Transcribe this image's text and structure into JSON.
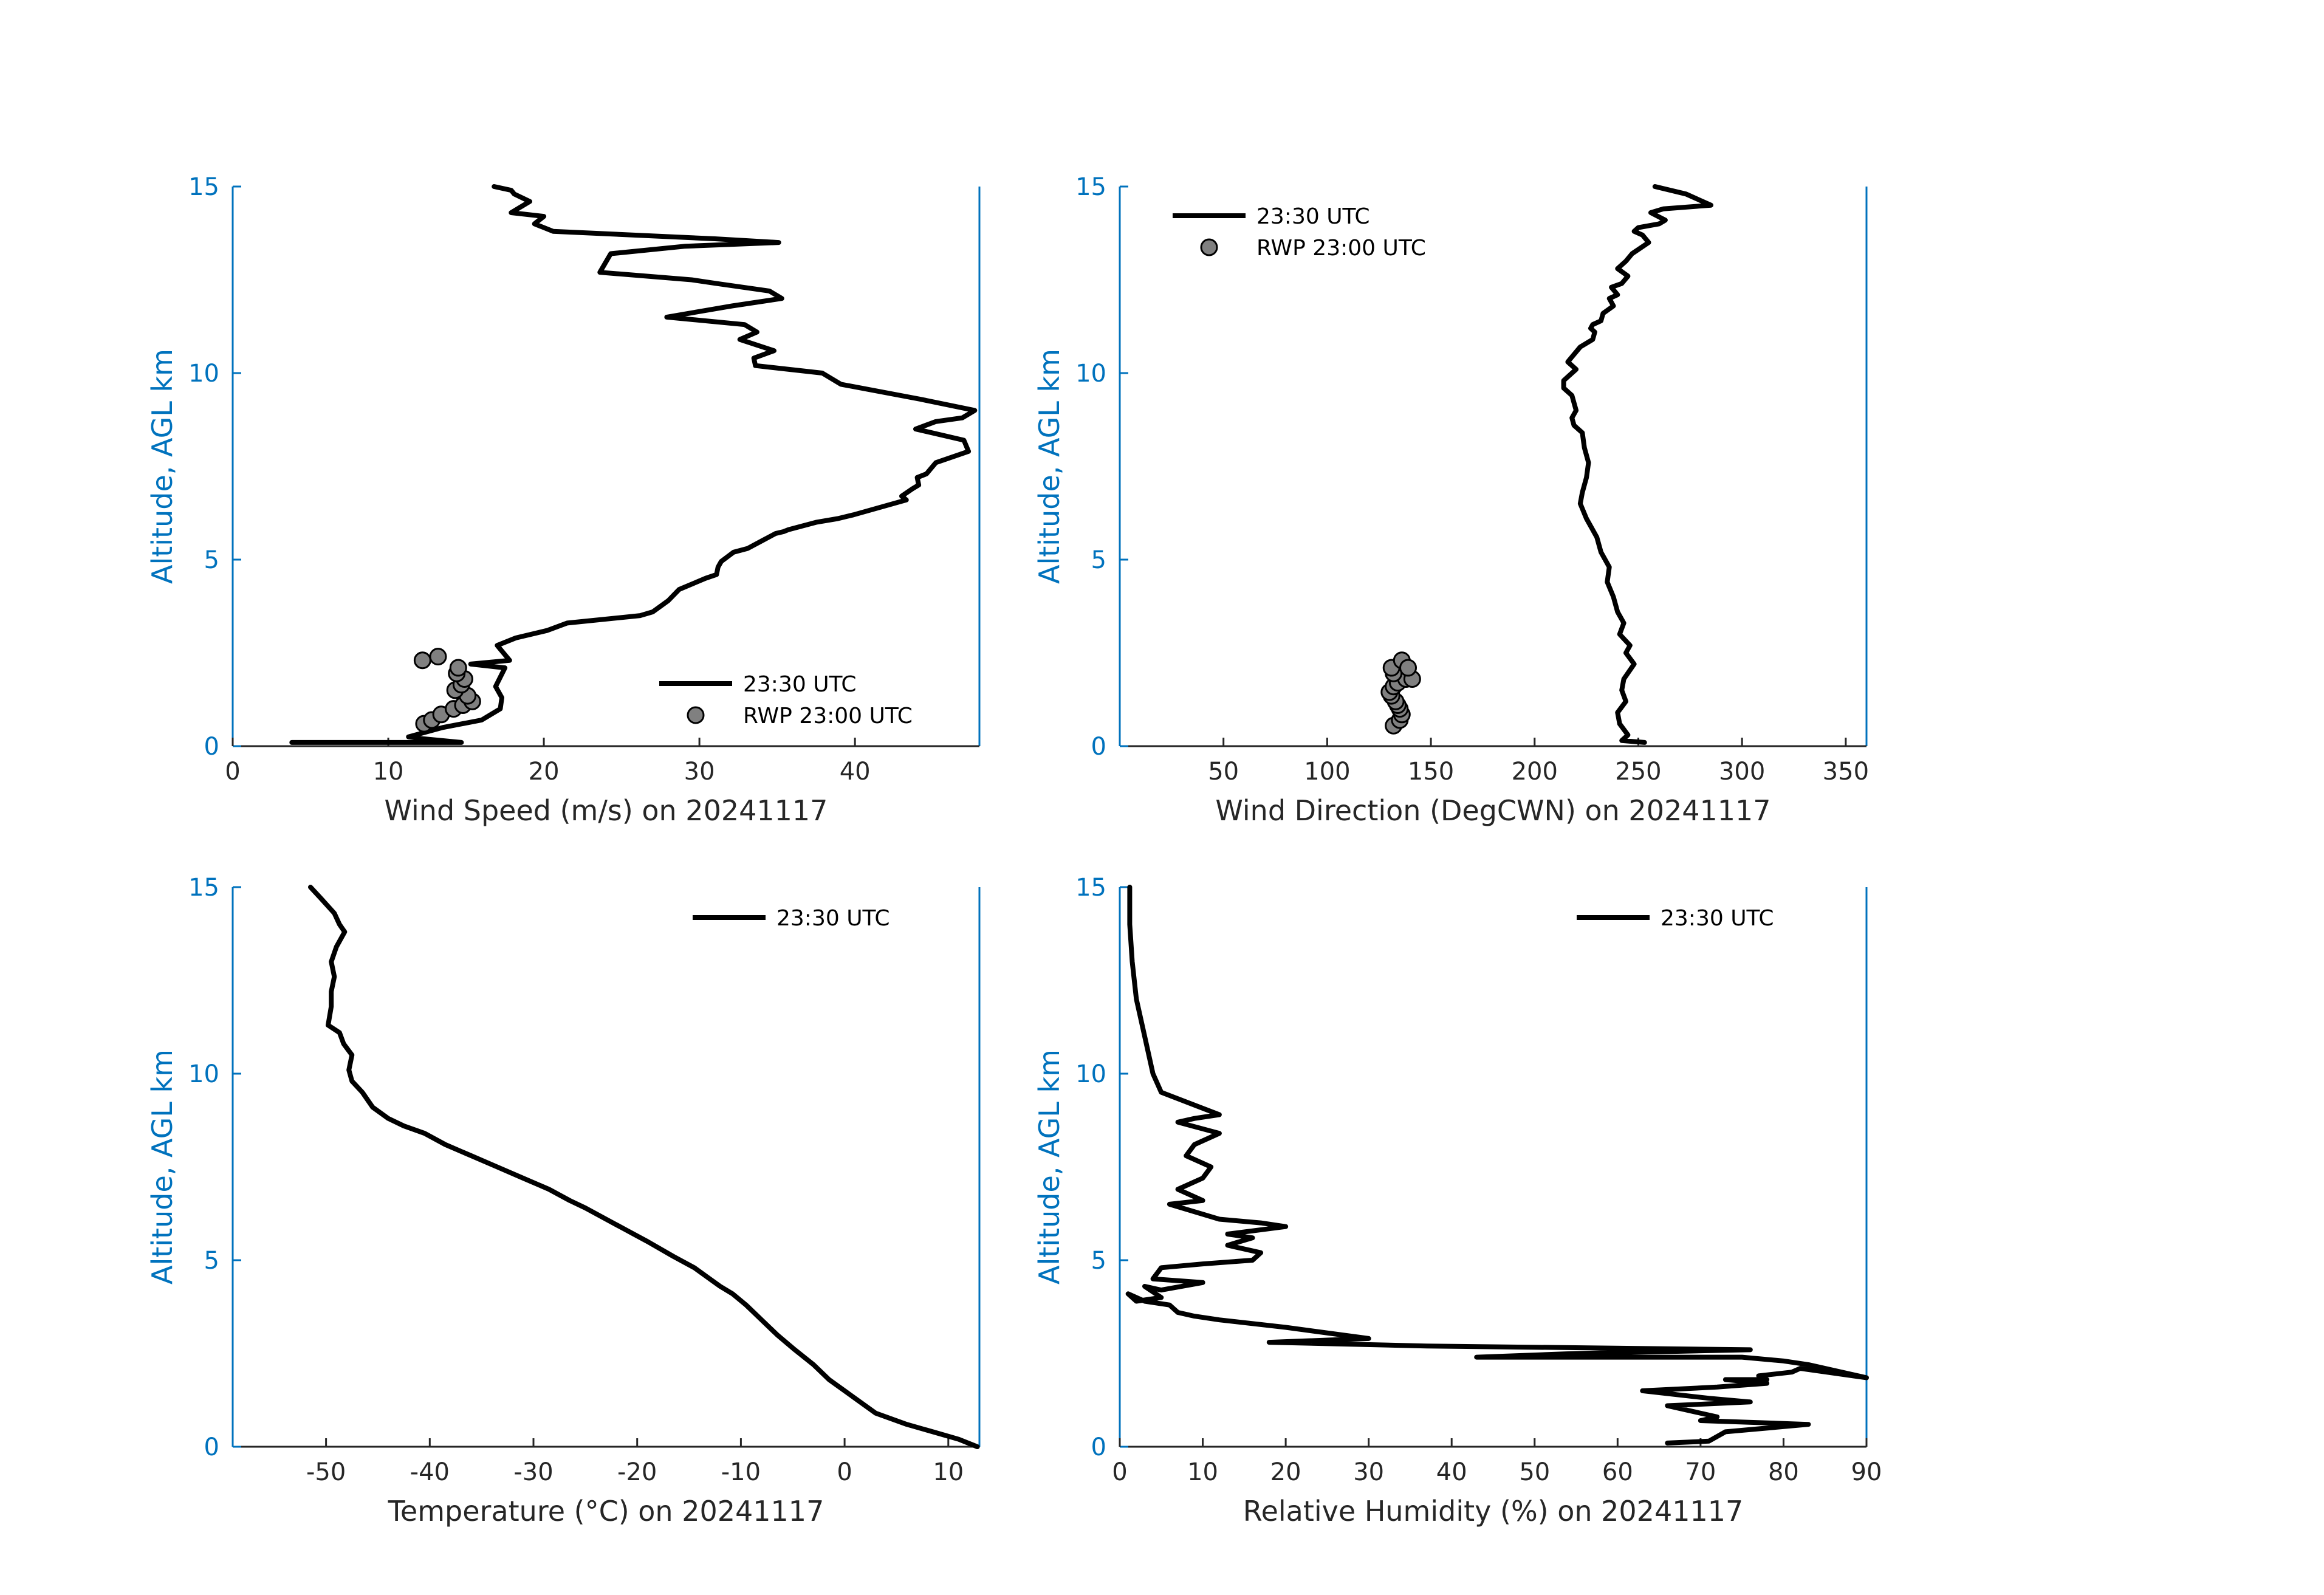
{
  "colors": {
    "axis": "#0072BD",
    "tick_text": "#262626",
    "line": "#000000",
    "marker_fill": "#808080"
  },
  "chart_data": [
    {
      "type": "line",
      "xlabel": "Wind Speed (m/s) on 20241117",
      "ylabel": "Altitude, AGL km",
      "xlim": [
        0,
        48
      ],
      "ylim": [
        0,
        15
      ],
      "xticks": [
        0,
        10,
        20,
        30,
        40
      ],
      "yticks": [
        0,
        5,
        10,
        15
      ],
      "legend_placement": "bottom-right",
      "series": [
        {
          "name": "23:30 UTC",
          "style": "line",
          "x": [
            3.8,
            14.7,
            12.2,
            11.3,
            13.5,
            16.0,
            17.2,
            17.3,
            16.9,
            17.5,
            15.3,
            17.8,
            17.0,
            18.2,
            20.2,
            21.5,
            26.2,
            27.0,
            28.0,
            28.7,
            30.4,
            31.1,
            31.2,
            31.4,
            32.2,
            33.1,
            34.0,
            34.9,
            35.4,
            35.7,
            37.5,
            38.9,
            39.9,
            43.3,
            43.0,
            43.7,
            44.1,
            44.0,
            44.6,
            45.2,
            47.3,
            47.0,
            43.9,
            45.2,
            46.9,
            47.7,
            44.2,
            39.1,
            37.9,
            33.6,
            33.5,
            34.8,
            32.6,
            33.7,
            32.9,
            27.9,
            32.1,
            35.3,
            34.5,
            31.1,
            29.5,
            23.6,
            24.3,
            29.1,
            35.1,
            31.0,
            20.6,
            19.4,
            20.0,
            17.9,
            18.7,
            19.1,
            18.1,
            17.9,
            16.8
          ],
          "y": [
            0.1,
            0.1,
            0.2,
            0.25,
            0.5,
            0.7,
            1.0,
            1.3,
            1.6,
            2.1,
            2.2,
            2.3,
            2.7,
            2.9,
            3.1,
            3.3,
            3.5,
            3.6,
            3.9,
            4.2,
            4.5,
            4.6,
            4.8,
            4.95,
            5.2,
            5.3,
            5.5,
            5.7,
            5.75,
            5.8,
            6.0,
            6.1,
            6.2,
            6.6,
            6.7,
            6.9,
            7.0,
            7.2,
            7.3,
            7.6,
            7.9,
            8.2,
            8.5,
            8.7,
            8.8,
            9.0,
            9.3,
            9.7,
            10.0,
            10.2,
            10.4,
            10.6,
            10.9,
            11.1,
            11.3,
            11.5,
            11.8,
            12.0,
            12.2,
            12.4,
            12.5,
            12.7,
            13.2,
            13.4,
            13.5,
            13.6,
            13.8,
            14.0,
            14.2,
            14.3,
            14.5,
            14.6,
            14.8,
            14.9,
            15.0
          ]
        },
        {
          "name": "RWP 23:00 UTC",
          "style": "marker",
          "x": [
            12.3,
            12.8,
            13.4,
            14.2,
            14.8,
            15.4,
            15.1,
            14.3,
            14.7,
            14.9,
            14.4,
            14.5,
            13.2,
            12.2
          ],
          "y": [
            0.6,
            0.7,
            0.85,
            1.0,
            1.1,
            1.2,
            1.35,
            1.5,
            1.65,
            1.8,
            1.95,
            2.1,
            2.4,
            2.3
          ]
        }
      ]
    },
    {
      "type": "line",
      "xlabel": "Wind Direction (DegCWN) on 20241117",
      "ylabel": "Altitude, AGL km",
      "xlim": [
        0,
        360
      ],
      "ylim": [
        0,
        15
      ],
      "xticks": [
        50,
        100,
        150,
        200,
        250,
        300,
        350
      ],
      "yticks": [
        0,
        5,
        10,
        15
      ],
      "legend_placement": "top-left",
      "series": [
        {
          "name": "23:30 UTC",
          "style": "line",
          "x": [
            253,
            242,
            245,
            241,
            240,
            244,
            242,
            243,
            248,
            244,
            246,
            241,
            243,
            240,
            238,
            235,
            236,
            232,
            230,
            228,
            225,
            222,
            223,
            225,
            226,
            224,
            223,
            219,
            218,
            220,
            218,
            214,
            214,
            218,
            220,
            216,
            219,
            222,
            228,
            229,
            227,
            228,
            232,
            233,
            238,
            236,
            240,
            237,
            242,
            245,
            240,
            244,
            247,
            255,
            252,
            248,
            250,
            260,
            263,
            256,
            262,
            285,
            273,
            258
          ],
          "y": [
            0.1,
            0.15,
            0.3,
            0.6,
            0.9,
            1.2,
            1.5,
            1.8,
            2.2,
            2.5,
            2.7,
            3.0,
            3.3,
            3.6,
            4.0,
            4.4,
            4.8,
            5.2,
            5.6,
            5.8,
            6.1,
            6.5,
            6.8,
            7.2,
            7.6,
            8.0,
            8.4,
            8.6,
            8.8,
            9.0,
            9.4,
            9.6,
            9.8,
            10.0,
            10.1,
            10.3,
            10.5,
            10.7,
            10.9,
            11.1,
            11.2,
            11.3,
            11.4,
            11.6,
            11.8,
            12.0,
            12.1,
            12.3,
            12.4,
            12.6,
            12.8,
            13.0,
            13.2,
            13.5,
            13.7,
            13.8,
            13.9,
            14.0,
            14.1,
            14.3,
            14.4,
            14.5,
            14.8,
            15.0
          ]
        },
        {
          "name": "RWP 23:00 UTC",
          "style": "marker",
          "x": [
            132,
            135,
            136,
            135,
            134,
            133,
            131,
            130,
            132,
            134,
            138,
            132,
            131,
            136,
            141,
            139
          ],
          "y": [
            0.55,
            0.7,
            0.85,
            1.0,
            1.1,
            1.2,
            1.35,
            1.45,
            1.6,
            1.7,
            1.8,
            1.95,
            2.1,
            2.3,
            1.8,
            2.1
          ]
        }
      ]
    },
    {
      "type": "line",
      "xlabel": "Temperature (°C) on 20241117",
      "ylabel": "Altitude, AGL km",
      "xlim": [
        -59,
        13
      ],
      "ylim": [
        0,
        15
      ],
      "xticks": [
        -50,
        -40,
        -30,
        -20,
        -10,
        0,
        10
      ],
      "yticks": [
        0,
        5,
        10,
        15
      ],
      "legend_placement": "top-right",
      "series": [
        {
          "name": "23:30 UTC",
          "style": "line",
          "x": [
            12.8,
            11.0,
            8.5,
            6.0,
            3.0,
            1.0,
            -1.5,
            -3.0,
            -4.8,
            -6.5,
            -8.0,
            -9.5,
            -10.8,
            -12.0,
            -13.0,
            -14.5,
            -16.5,
            -19.0,
            -21.0,
            -23.0,
            -25.0,
            -26.5,
            -28.5,
            -31.0,
            -33.5,
            -36.0,
            -38.5,
            -40.5,
            -42.5,
            -44.0,
            -45.5,
            -46.5,
            -47.5,
            -47.8,
            -47.5,
            -48.3,
            -48.7,
            -49.8,
            -49.5,
            -49.5,
            -49.2,
            -49.5,
            -49.0,
            -48.2,
            -48.7,
            -49.2,
            -50.5,
            -51.5
          ],
          "y": [
            0.0,
            0.2,
            0.4,
            0.6,
            0.9,
            1.3,
            1.8,
            2.2,
            2.6,
            3.0,
            3.4,
            3.8,
            4.1,
            4.3,
            4.5,
            4.8,
            5.1,
            5.5,
            5.8,
            6.1,
            6.4,
            6.6,
            6.9,
            7.2,
            7.5,
            7.8,
            8.1,
            8.4,
            8.6,
            8.8,
            9.1,
            9.5,
            9.8,
            10.1,
            10.5,
            10.8,
            11.1,
            11.3,
            11.8,
            12.2,
            12.6,
            13.0,
            13.4,
            13.8,
            14.0,
            14.3,
            14.7,
            15.0
          ]
        }
      ]
    },
    {
      "type": "line",
      "xlabel": "Relative Humidity (%) on 20241117",
      "ylabel": "Altitude, AGL km",
      "xlim": [
        0,
        90
      ],
      "ylim": [
        0,
        15
      ],
      "xticks": [
        0,
        10,
        20,
        30,
        40,
        50,
        60,
        70,
        80,
        90
      ],
      "yticks": [
        0,
        5,
        10,
        15
      ],
      "legend_placement": "top-right",
      "series": [
        {
          "name": "23:30 UTC",
          "style": "line",
          "x": [
            66,
            71,
            73,
            83,
            70,
            72,
            66,
            76,
            71,
            63,
            72,
            78,
            73,
            76,
            78,
            77,
            81,
            82,
            90,
            83,
            80,
            75,
            43,
            55,
            76,
            37,
            18,
            30,
            20,
            12,
            9,
            7,
            6,
            3,
            1,
            2,
            5,
            3,
            5,
            10,
            4,
            5,
            10,
            16,
            17,
            13,
            16,
            13,
            20,
            17,
            12,
            6,
            10,
            7,
            10,
            11,
            8,
            9,
            12,
            7,
            9,
            12,
            5,
            4,
            3,
            2,
            1.5,
            1.2,
            1.2
          ],
          "y": [
            0.1,
            0.15,
            0.4,
            0.6,
            0.7,
            0.8,
            1.1,
            1.2,
            1.3,
            1.5,
            1.6,
            1.7,
            1.8,
            1.8,
            1.8,
            1.9,
            2.0,
            2.1,
            1.85,
            2.2,
            2.3,
            2.4,
            2.4,
            2.5,
            2.6,
            2.7,
            2.8,
            2.9,
            3.2,
            3.4,
            3.5,
            3.6,
            3.8,
            3.9,
            4.1,
            3.9,
            4.0,
            4.3,
            4.2,
            4.4,
            4.5,
            4.8,
            4.9,
            5.0,
            5.2,
            5.4,
            5.6,
            5.7,
            5.9,
            6.0,
            6.1,
            6.5,
            6.6,
            6.9,
            7.2,
            7.5,
            7.8,
            8.1,
            8.4,
            8.7,
            8.8,
            8.9,
            9.5,
            10.0,
            11.0,
            12.0,
            13.0,
            14.0,
            15.0
          ]
        }
      ]
    }
  ]
}
